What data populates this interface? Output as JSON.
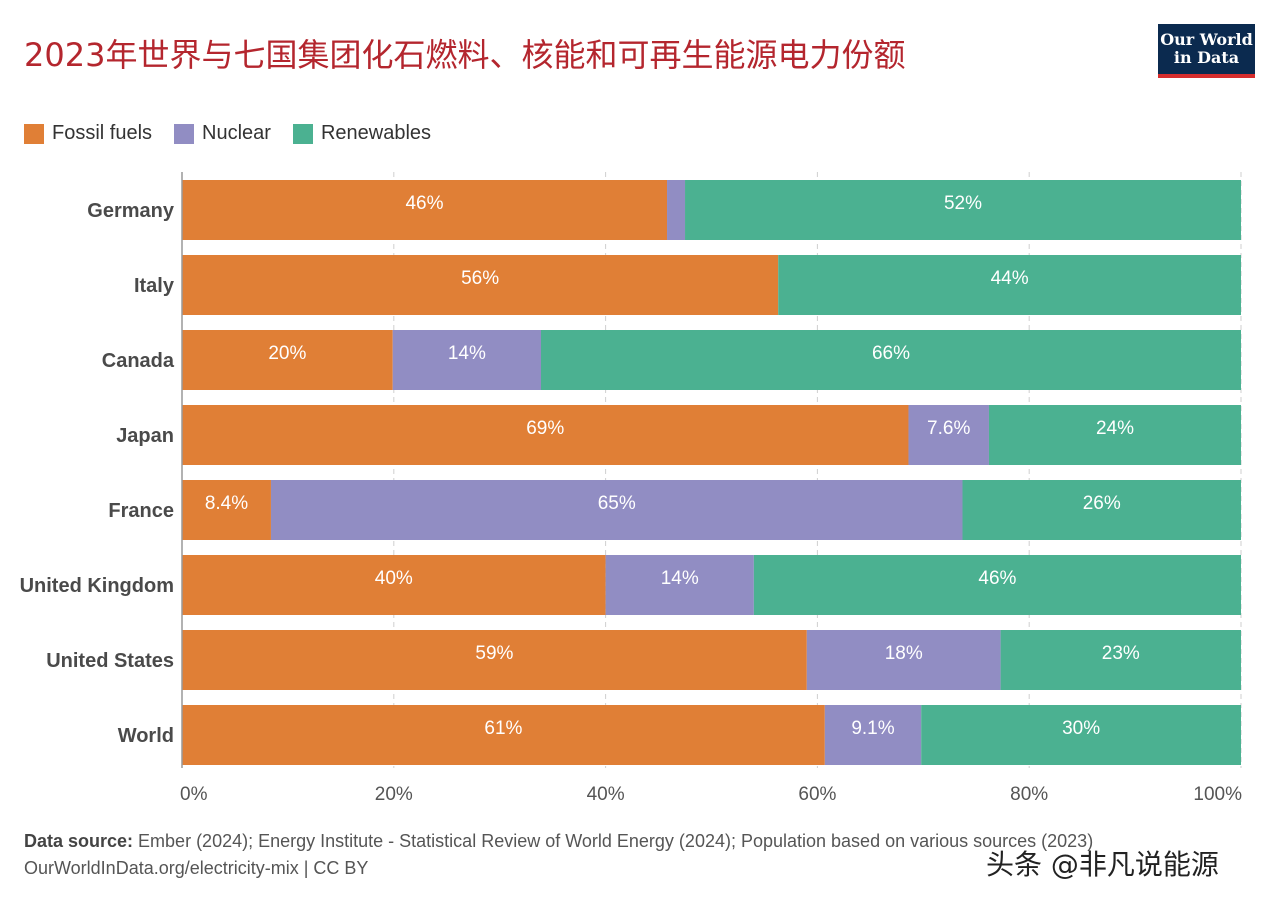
{
  "chart_data": {
    "type": "bar",
    "orientation": "horizontal",
    "stacked": true,
    "title": "2023年世界与七国集团化石燃料、核能和可再生能源电力份额",
    "categories": [
      "Germany",
      "Italy",
      "Canada",
      "Japan",
      "France",
      "United Kingdom",
      "United States",
      "World"
    ],
    "series": [
      {
        "name": "Fossil fuels",
        "color": "#e07f36",
        "values": [
          45.8,
          56.3,
          19.9,
          68.6,
          8.4,
          40.0,
          59.0,
          60.7
        ],
        "labels": [
          "46%",
          "56%",
          "20%",
          "69%",
          "8.4%",
          "40%",
          "59%",
          "61%"
        ]
      },
      {
        "name": "Nuclear",
        "color": "#918dc3",
        "values": [
          1.7,
          0,
          14.0,
          7.6,
          65.3,
          14.0,
          18.3,
          9.1
        ],
        "labels": [
          "",
          "",
          "14%",
          "7.6%",
          "65%",
          "14%",
          "18%",
          "9.1%"
        ]
      },
      {
        "name": "Renewables",
        "color": "#4bb191",
        "values": [
          52.5,
          43.7,
          66.1,
          23.8,
          26.3,
          46.0,
          22.7,
          30.2
        ],
        "labels": [
          "52%",
          "44%",
          "66%",
          "24%",
          "26%",
          "46%",
          "23%",
          "30%"
        ]
      }
    ],
    "xlim": [
      0,
      100
    ],
    "xticks": [
      0,
      20,
      40,
      60,
      80,
      100
    ],
    "xtick_labels": [
      "0%",
      "20%",
      "40%",
      "60%",
      "80%",
      "100%"
    ],
    "grid": true,
    "legend_position": "top-left"
  },
  "logo": {
    "line1": "Our World",
    "line2": "in Data"
  },
  "footer": {
    "source_label": "Data source:",
    "source_text": " Ember (2024); Energy Institute - Statistical Review of World Energy (2024); Population based on various sources (2023)",
    "link_text": "OurWorldInData.org/electricity-mix | CC BY"
  },
  "watermark": "头条 @非凡说能源"
}
